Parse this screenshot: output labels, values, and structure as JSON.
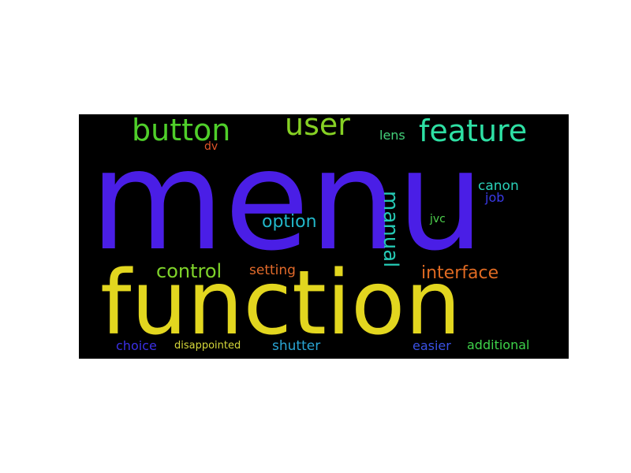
{
  "background": "#000000",
  "words": [
    {
      "id": "menu",
      "text": "menu",
      "color": "#4a1ee6",
      "orientation": "horizontal"
    },
    {
      "id": "function",
      "text": "function",
      "color": "#e2d61f",
      "orientation": "horizontal"
    },
    {
      "id": "button",
      "text": "button",
      "color": "#4fcf2a",
      "orientation": "horizontal"
    },
    {
      "id": "user",
      "text": "user",
      "color": "#86d124",
      "orientation": "horizontal"
    },
    {
      "id": "feature",
      "text": "feature",
      "color": "#2ee0a4",
      "orientation": "horizontal"
    },
    {
      "id": "manual",
      "text": "manual",
      "color": "#25c9b4",
      "orientation": "vertical"
    },
    {
      "id": "option",
      "text": "option",
      "color": "#22b7c9",
      "orientation": "horizontal"
    },
    {
      "id": "control",
      "text": "control",
      "color": "#7fd32a",
      "orientation": "horizontal"
    },
    {
      "id": "interface",
      "text": "interface",
      "color": "#e06a22",
      "orientation": "horizontal"
    },
    {
      "id": "setting",
      "text": "setting",
      "color": "#e26a2a",
      "orientation": "horizontal"
    },
    {
      "id": "lens",
      "text": "lens",
      "color": "#43d17a",
      "orientation": "horizontal"
    },
    {
      "id": "dv",
      "text": "dv",
      "color": "#e2552a",
      "orientation": "horizontal"
    },
    {
      "id": "canon",
      "text": "canon",
      "color": "#2ad0b8",
      "orientation": "horizontal"
    },
    {
      "id": "job",
      "text": "job",
      "color": "#3a3ae8",
      "orientation": "horizontal"
    },
    {
      "id": "jvc",
      "text": "jvc",
      "color": "#4ed14e",
      "orientation": "horizontal"
    },
    {
      "id": "choice",
      "text": "choice",
      "color": "#3b30e6",
      "orientation": "horizontal"
    },
    {
      "id": "disappointed",
      "text": "disappointed",
      "color": "#d6d83a",
      "orientation": "horizontal"
    },
    {
      "id": "shutter",
      "text": "shutter",
      "color": "#2aa6d6",
      "orientation": "horizontal"
    },
    {
      "id": "easier",
      "text": "easier",
      "color": "#3a52e6",
      "orientation": "horizontal"
    },
    {
      "id": "additional",
      "text": "additional",
      "color": "#3ed34a",
      "orientation": "horizontal"
    }
  ]
}
